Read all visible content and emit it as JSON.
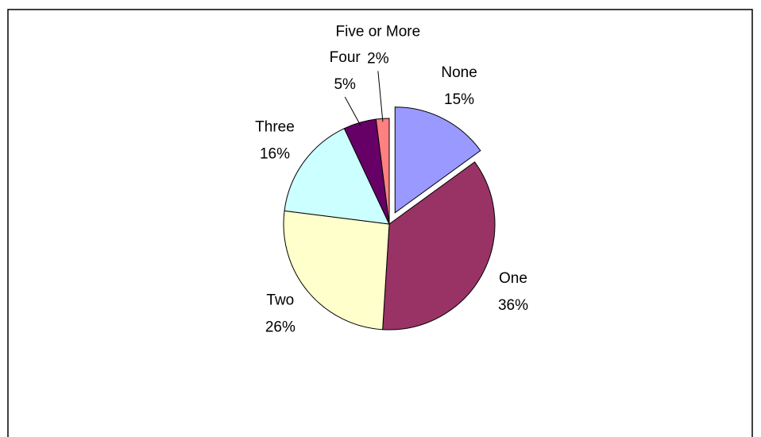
{
  "chart_data": {
    "type": "pie",
    "categories": [
      "None",
      "One",
      "Two",
      "Three",
      "Four",
      "Five or More"
    ],
    "values": [
      15,
      36,
      26,
      16,
      5,
      2
    ],
    "value_labels": [
      "15%",
      "36%",
      "26%",
      "16%",
      "5%",
      "2%"
    ],
    "colors": [
      "#9999ff",
      "#993366",
      "#ffffcc",
      "#ccffff",
      "#660066",
      "#ff8080"
    ],
    "exploded": [
      "None"
    ]
  }
}
